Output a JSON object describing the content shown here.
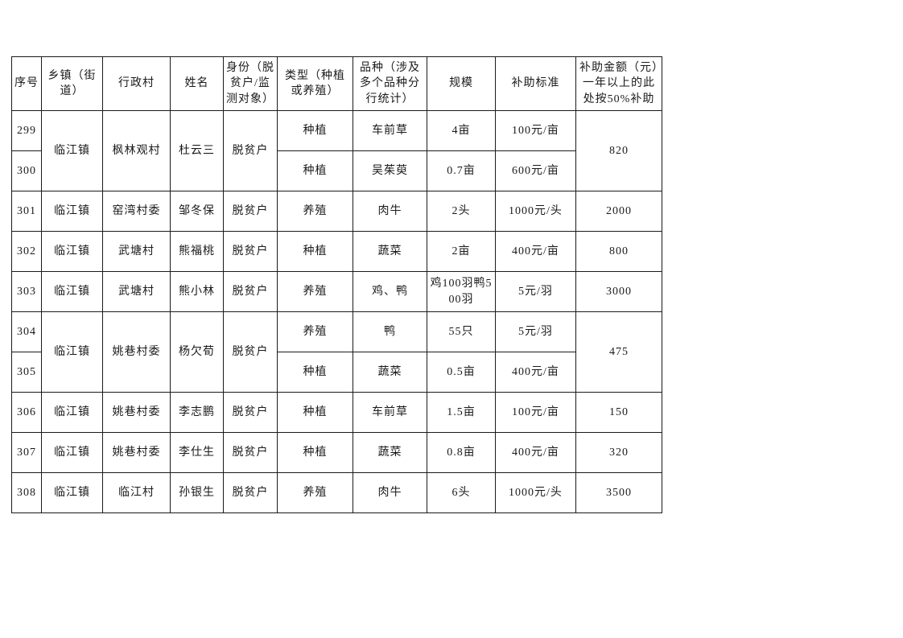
{
  "page": {
    "background_color": "#ffffff",
    "text_color": "#1a1a1a",
    "border_color": "#1a1a1a"
  },
  "table": {
    "headers": [
      "序号",
      "乡镇（街道）",
      "行政村",
      "姓名",
      "身份（脱贫户/监测对象）",
      "类型（种植或养殖）",
      "品种（涉及多个品种分行统计）",
      "规模",
      "补助标准",
      "补助金额（元）一年以上的此处按50%补助"
    ],
    "rows": [
      {
        "cells": [
          "299",
          {
            "text": "临江镇",
            "rowspan": 2
          },
          {
            "text": "枫林观村",
            "rowspan": 2
          },
          {
            "text": "杜云三",
            "rowspan": 2
          },
          {
            "text": "脱贫户",
            "rowspan": 2
          },
          "种植",
          "车前草",
          "4亩",
          "100元/亩",
          {
            "text": "820",
            "rowspan": 2
          }
        ]
      },
      {
        "cells": [
          "300",
          "种植",
          "吴茱萸",
          "0.7亩",
          "600元/亩"
        ]
      },
      {
        "cells": [
          "301",
          "临江镇",
          "窑湾村委",
          "邹冬保",
          "脱贫户",
          "养殖",
          "肉牛",
          "2头",
          "1000元/头",
          "2000"
        ]
      },
      {
        "cells": [
          "302",
          "临江镇",
          "武塘村",
          "熊福桃",
          "脱贫户",
          "种植",
          "蔬菜",
          "2亩",
          "400元/亩",
          "800"
        ]
      },
      {
        "cells": [
          "303",
          "临江镇",
          "武塘村",
          "熊小林",
          "脱贫户",
          "养殖",
          "鸡、鸭",
          "鸡100羽鸭500羽",
          "5元/羽",
          "3000"
        ]
      },
      {
        "cells": [
          "304",
          {
            "text": "临江镇",
            "rowspan": 2
          },
          {
            "text": "姚巷村委",
            "rowspan": 2
          },
          {
            "text": "杨欠荀",
            "rowspan": 2
          },
          {
            "text": "脱贫户",
            "rowspan": 2
          },
          "养殖",
          "鸭",
          "55只",
          "5元/羽",
          {
            "text": "475",
            "rowspan": 2
          }
        ]
      },
      {
        "cells": [
          "305",
          "种植",
          "蔬菜",
          "0.5亩",
          "400元/亩"
        ]
      },
      {
        "cells": [
          "306",
          "临江镇",
          "姚巷村委",
          "李志鹏",
          "脱贫户",
          "种植",
          "车前草",
          "1.5亩",
          "100元/亩",
          "150"
        ]
      },
      {
        "cells": [
          "307",
          "临江镇",
          "姚巷村委",
          "李仕生",
          "脱贫户",
          "种植",
          "蔬菜",
          "0.8亩",
          "400元/亩",
          "320"
        ]
      },
      {
        "cells": [
          "308",
          "临江镇",
          "临江村",
          "孙银生",
          "脱贫户",
          "养殖",
          "肉牛",
          "6头",
          "1000元/头",
          "3500"
        ]
      }
    ]
  }
}
